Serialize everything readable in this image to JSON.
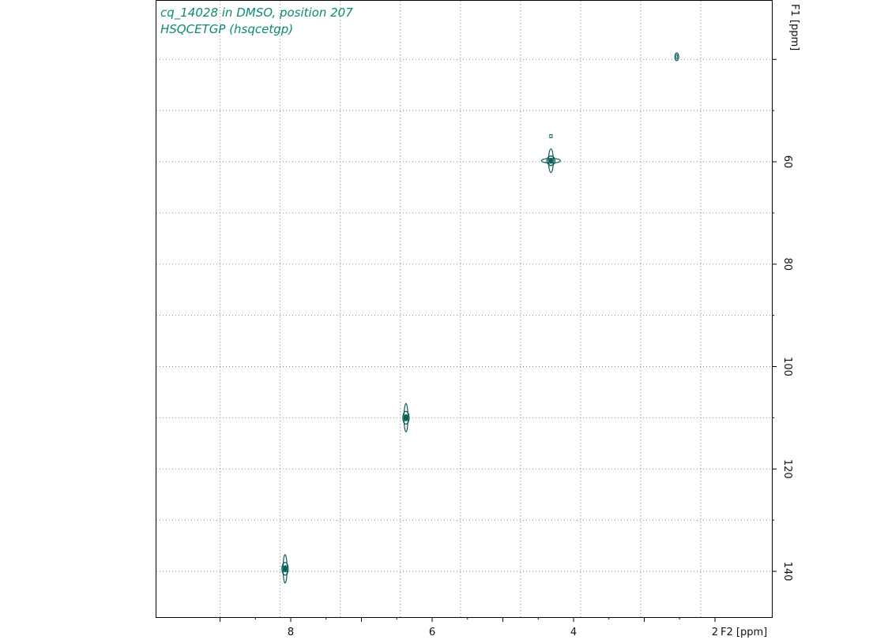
{
  "chart_data": {
    "type": "heatmap",
    "subtype": "2D NMR contour (HSQC)",
    "title": "cq_14028 in DMSO, position 207",
    "subtitle": "HSQCETGP (hsqcetgp)",
    "xlabel": "F2 [ppm]",
    "ylabel": "F1 [ppm]",
    "x_reversed": true,
    "y_reversed": true,
    "xlim": [
      9.8,
      1.6
    ],
    "ylim": [
      141,
      151
    ],
    "x_ticks": [
      8,
      6,
      4,
      2
    ],
    "y_ticks": [
      60,
      80,
      100,
      120,
      140
    ],
    "grid": true,
    "grid_x": [
      9.0,
      8.15,
      7.3,
      6.45,
      5.6,
      4.75,
      3.9,
      3.05,
      2.2
    ],
    "grid_y": [
      40,
      50,
      60,
      70,
      80,
      90,
      100,
      110,
      120,
      130,
      140
    ],
    "contour_color": "#0b5f58",
    "title_color": "#0a8a72",
    "peaks": [
      {
        "x": 2.54,
        "y": 39.5
      },
      {
        "x": 4.32,
        "y": 55.0
      },
      {
        "x": 4.32,
        "y": 59.8
      },
      {
        "x": 6.37,
        "y": 110.0
      },
      {
        "x": 8.08,
        "y": 139.5
      }
    ]
  }
}
